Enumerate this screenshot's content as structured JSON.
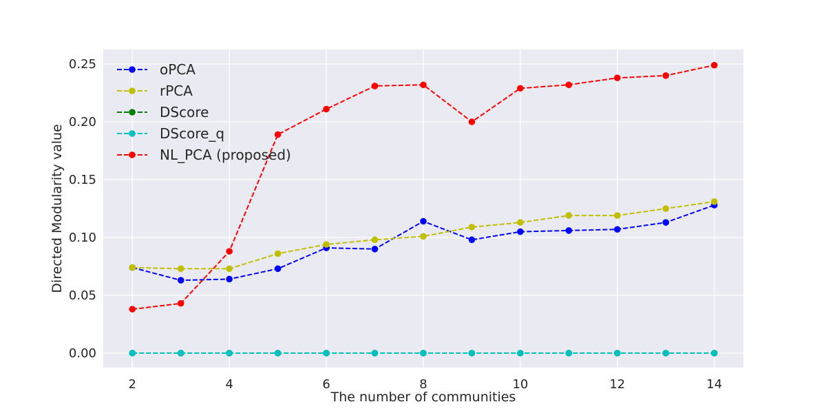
{
  "chart_data": {
    "type": "line",
    "title": "",
    "xlabel": "The number of communities",
    "ylabel": "Directed Modularity value",
    "xlim": [
      1.4,
      14.6
    ],
    "ylim": [
      -0.0125,
      0.2625
    ],
    "x_ticks": [
      2,
      4,
      6,
      8,
      10,
      12,
      14
    ],
    "y_ticks": [
      0.0,
      0.05,
      0.1,
      0.15,
      0.2,
      0.25
    ],
    "x_tick_labels": [
      "2",
      "4",
      "6",
      "8",
      "10",
      "12",
      "14"
    ],
    "y_tick_labels": [
      "0.00",
      "0.05",
      "0.10",
      "0.15",
      "0.20",
      "0.25"
    ],
    "grid": true,
    "legend_position": "upper-left",
    "x": [
      2,
      3,
      4,
      5,
      6,
      7,
      8,
      9,
      10,
      11,
      12,
      13,
      14
    ],
    "series": [
      {
        "name": "oPCA",
        "color": "#0000ff",
        "values": [
          0.074,
          0.063,
          0.064,
          0.073,
          0.091,
          0.09,
          0.114,
          0.098,
          0.105,
          0.106,
          0.107,
          0.113,
          0.128
        ]
      },
      {
        "name": "rPCA",
        "color": "#bfbf00",
        "values": [
          0.074,
          0.073,
          0.073,
          0.086,
          0.094,
          0.098,
          0.101,
          0.109,
          0.113,
          0.119,
          0.119,
          0.125,
          0.131
        ]
      },
      {
        "name": "DScore",
        "color": "#008000",
        "values": [
          0.0,
          0.0,
          0.0,
          0.0,
          0.0,
          0.0,
          0.0,
          0.0,
          0.0,
          0.0,
          0.0,
          0.0,
          0.0
        ]
      },
      {
        "name": "DScore_q",
        "color": "#00bfbf",
        "values": [
          0.0,
          0.0,
          0.0,
          0.0,
          0.0,
          0.0,
          0.0,
          0.0,
          0.0,
          0.0,
          0.0,
          0.0,
          0.0
        ]
      },
      {
        "name": "NL_PCA (proposed)",
        "color": "#ff0000",
        "values": [
          0.038,
          0.043,
          0.088,
          0.189,
          0.211,
          0.231,
          0.232,
          0.2,
          0.229,
          0.232,
          0.238,
          0.24,
          0.249
        ]
      }
    ]
  }
}
